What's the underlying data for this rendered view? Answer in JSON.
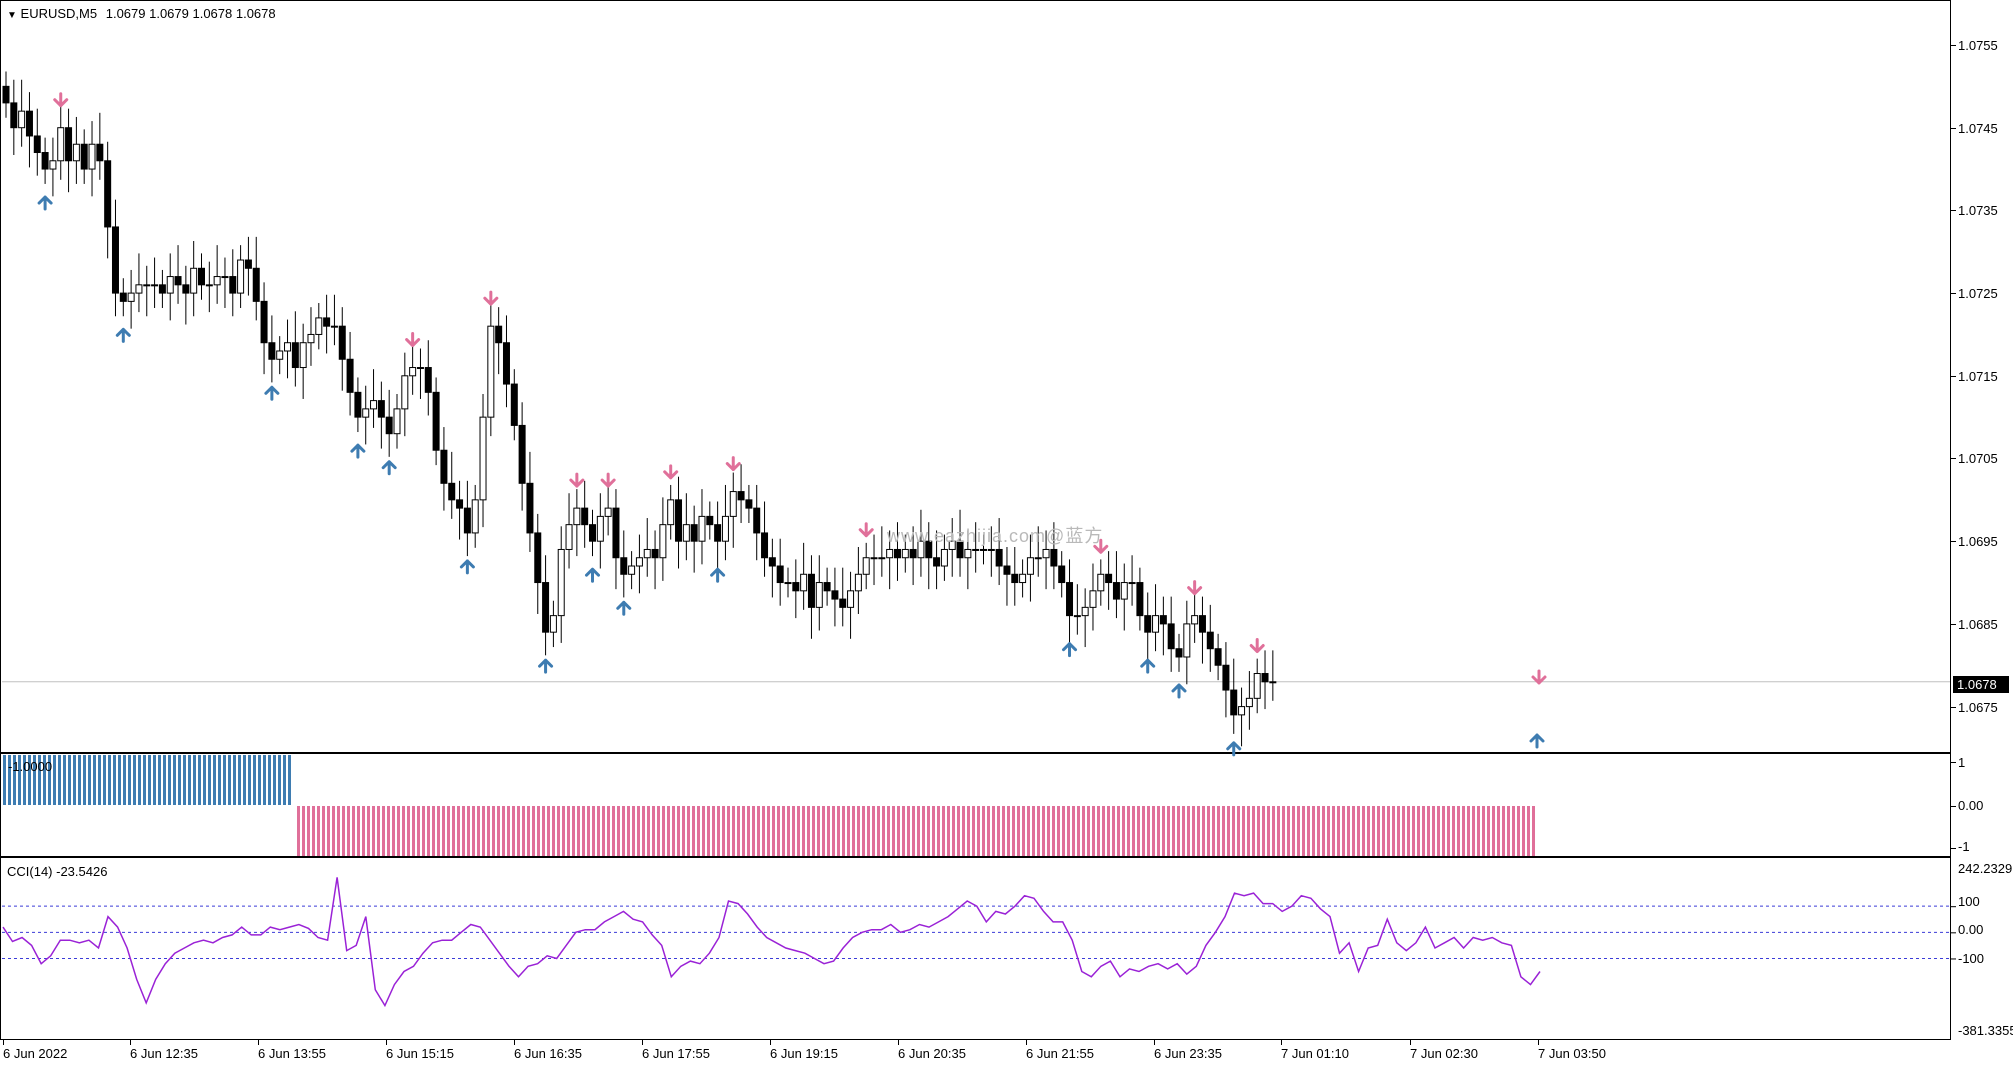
{
  "chart_header": {
    "symbol_timeframe": "EURUSD,M5",
    "ohlc": "1.0679 1.0679 1.0678 1.0678"
  },
  "price_axis": {
    "labels": [
      "1.0755",
      "1.0745",
      "1.0735",
      "1.0725",
      "1.0715",
      "1.0705",
      "1.0695",
      "1.0685",
      "1.0675"
    ],
    "current_price": "1.0678"
  },
  "signal_indicator": {
    "value_label": "-1.0000",
    "axis_labels": [
      "1",
      "0.00",
      "-1"
    ],
    "colors": {
      "up": "#3e7cb1",
      "down": "#e0709a"
    }
  },
  "cci_indicator": {
    "label": "CCI(14) -23.5426",
    "axis_labels": [
      "242.2329",
      "100",
      "0.00",
      "-100",
      "-381.3355"
    ],
    "line_color": "#9a22d6",
    "level_color": "#3b3bd8"
  },
  "time_axis": {
    "labels": [
      "6 Jun 2022",
      "6 Jun 12:35",
      "6 Jun 13:55",
      "6 Jun 15:15",
      "6 Jun 16:35",
      "6 Jun 17:55",
      "6 Jun 19:15",
      "6 Jun 20:35",
      "6 Jun 21:55",
      "6 Jun 23:35",
      "7 Jun 01:10",
      "7 Jun 02:30",
      "7 Jun 03:50"
    ]
  },
  "watermark": "www.eazhijia.com@蓝方",
  "chart_data": {
    "type": "candlestick",
    "price_range": [
      1.06725,
      1.07585
    ],
    "last_price": 1.0678,
    "candles_close": [
      1.0748,
      1.0745,
      1.0747,
      1.0744,
      1.0742,
      1.074,
      1.0741,
      1.0745,
      1.0741,
      1.0743,
      1.074,
      1.0743,
      1.0741,
      1.0733,
      1.0725,
      1.0724,
      1.0725,
      1.0726,
      1.0726,
      1.0726,
      1.0725,
      1.0727,
      1.0726,
      1.0725,
      1.0728,
      1.0726,
      1.0726,
      1.0727,
      1.0727,
      1.0725,
      1.0729,
      1.0728,
      1.0724,
      1.0719,
      1.0717,
      1.0718,
      1.0719,
      1.0716,
      1.0719,
      1.072,
      1.0722,
      1.0721,
      1.0721,
      1.0717,
      1.0713,
      1.071,
      1.0711,
      1.0712,
      1.071,
      1.0708,
      1.0711,
      1.0715,
      1.0716,
      1.0716,
      1.0713,
      1.0706,
      1.0702,
      1.07,
      1.0699,
      1.0696,
      1.07,
      1.071,
      1.0721,
      1.0719,
      1.0714,
      1.0709,
      1.0702,
      1.0696,
      1.069,
      1.0684,
      1.0686,
      1.0694,
      1.0697,
      1.0699,
      1.0697,
      1.0695,
      1.0698,
      1.0699,
      1.0693,
      1.0691,
      1.0692,
      1.0693,
      1.0694,
      1.0693,
      1.0697,
      1.07,
      1.0695,
      1.0697,
      1.0695,
      1.0698,
      1.0697,
      1.0695,
      1.0698,
      1.0701,
      1.07,
      1.0699,
      1.0696,
      1.0693,
      1.0692,
      1.069,
      1.069,
      1.0689,
      1.0691,
      1.0687,
      1.069,
      1.0689,
      1.0688,
      1.0687,
      1.0689,
      1.0691,
      1.0693,
      1.0693,
      1.0693,
      1.0694,
      1.0693,
      1.0694,
      1.0693,
      1.0695,
      1.0693,
      1.0692,
      1.0694,
      1.0695,
      1.0693,
      1.0694,
      1.0694,
      1.0694,
      1.0694,
      1.0692,
      1.0691,
      1.069,
      1.0691,
      1.0693,
      1.0693,
      1.0694,
      1.0692,
      1.069,
      1.0686,
      1.0686,
      1.0687,
      1.0689,
      1.0691,
      1.069,
      1.0688,
      1.069,
      1.069,
      1.0686,
      1.0684,
      1.0686,
      1.0685,
      1.0682,
      1.0681,
      1.0685,
      1.0686,
      1.0684,
      1.0682,
      1.068,
      1.0677,
      1.0674,
      1.0675,
      1.0676,
      1.0679,
      1.0678,
      1.0678
    ],
    "signal_bars": {
      "up_count": 58,
      "down_count": 248
    },
    "cci_values": [
      20,
      -35,
      -20,
      -50,
      -120,
      -90,
      -30,
      -30,
      -40,
      -30,
      -60,
      60,
      20,
      -60,
      -180,
      -270,
      -180,
      -120,
      -80,
      -60,
      -40,
      -30,
      -40,
      -20,
      -10,
      20,
      -10,
      -10,
      20,
      10,
      20,
      30,
      15,
      -20,
      -30,
      210,
      -70,
      -50,
      60,
      -220,
      -280,
      -200,
      -150,
      -130,
      -80,
      -40,
      -30,
      -30,
      0,
      30,
      20,
      -30,
      -80,
      -130,
      -170,
      -130,
      -120,
      -90,
      -100,
      -50,
      0,
      10,
      10,
      40,
      60,
      80,
      50,
      40,
      -10,
      -50,
      -170,
      -130,
      -110,
      -120,
      -80,
      -20,
      120,
      110,
      70,
      20,
      -20,
      -40,
      -60,
      -70,
      -80,
      -100,
      -120,
      -110,
      -60,
      -20,
      0,
      10,
      10,
      30,
      0,
      10,
      30,
      20,
      40,
      60,
      90,
      120,
      100,
      40,
      80,
      70,
      100,
      140,
      130,
      80,
      40,
      40,
      -30,
      -150,
      -170,
      -130,
      -110,
      -170,
      -140,
      -150,
      -130,
      -120,
      -140,
      -120,
      -160,
      -130,
      -50,
      0,
      60,
      150,
      140,
      150,
      110,
      110,
      80,
      100,
      140,
      130,
      90,
      60,
      -80,
      -40,
      -150,
      -60,
      -50,
      50,
      -40,
      -70,
      -40,
      20,
      -60,
      -40,
      -20,
      -60,
      -20,
      -30,
      -20,
      -40,
      -50,
      -170,
      -200,
      -150
    ]
  }
}
